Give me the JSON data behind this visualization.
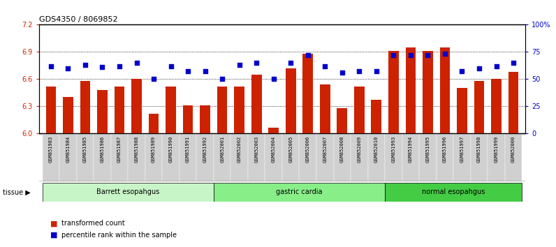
{
  "title": "GDS4350 / 8069852",
  "samples": [
    "GSM851983",
    "GSM851984",
    "GSM851985",
    "GSM851986",
    "GSM851987",
    "GSM851988",
    "GSM851989",
    "GSM851990",
    "GSM851991",
    "GSM851992",
    "GSM852001",
    "GSM852002",
    "GSM852003",
    "GSM852004",
    "GSM852005",
    "GSM852006",
    "GSM852007",
    "GSM852008",
    "GSM852009",
    "GSM852010",
    "GSM851993",
    "GSM851994",
    "GSM851995",
    "GSM851996",
    "GSM851997",
    "GSM851998",
    "GSM851999",
    "GSM852000"
  ],
  "red_values": [
    6.52,
    6.4,
    6.58,
    6.48,
    6.52,
    6.6,
    6.22,
    6.52,
    6.31,
    6.31,
    6.52,
    6.52,
    6.65,
    6.06,
    6.72,
    6.88,
    6.54,
    6.28,
    6.52,
    6.37,
    6.91,
    6.95,
    6.91,
    6.95,
    6.5,
    6.58,
    6.6,
    6.68
  ],
  "blue_values": [
    62,
    60,
    63,
    61,
    62,
    65,
    50,
    62,
    57,
    57,
    50,
    63,
    65,
    50,
    65,
    72,
    62,
    56,
    57,
    57,
    72,
    72,
    72,
    73,
    57,
    60,
    62,
    65
  ],
  "groups": [
    {
      "label": "Barrett esopahgus",
      "start": 0,
      "end": 10,
      "color": "#c8f5c8"
    },
    {
      "label": "gastric cardia",
      "start": 10,
      "end": 20,
      "color": "#88ee88"
    },
    {
      "label": "normal esopahgus",
      "start": 20,
      "end": 28,
      "color": "#44cc44"
    }
  ],
  "ylim_left": [
    6.0,
    7.2
  ],
  "ylim_right": [
    0,
    100
  ],
  "yticks_left": [
    6.0,
    6.3,
    6.6,
    6.9,
    7.2
  ],
  "yticks_right": [
    0,
    25,
    50,
    75,
    100
  ],
  "ytick_labels_right": [
    "0",
    "25",
    "50",
    "75",
    "100%"
  ],
  "bar_color": "#cc2200",
  "dot_color": "#0000cc",
  "bg_color": "#ffffff",
  "tick_bg_color": "#d0d0d0",
  "axis_color_left": "#cc2200",
  "axis_color_right": "#0000cc"
}
